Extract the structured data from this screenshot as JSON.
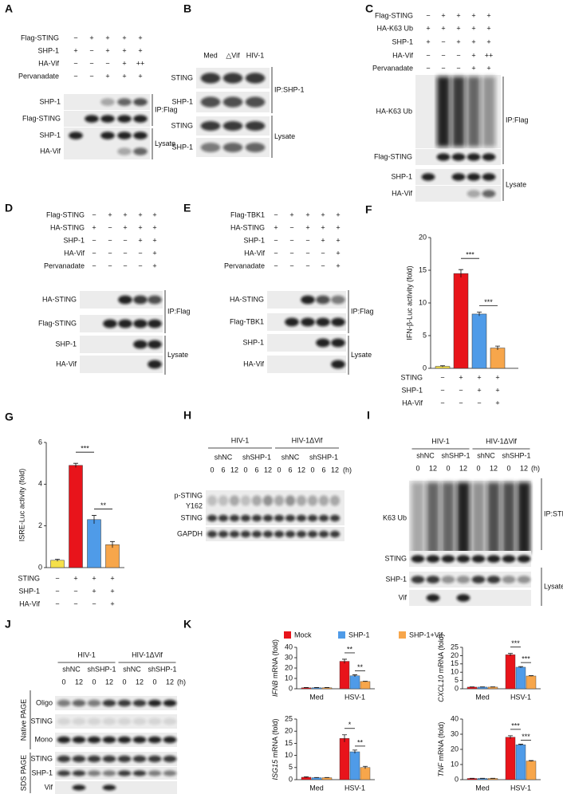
{
  "panels": [
    {
      "label": "A",
      "conditions": [
        {
          "name": "Flag-STING",
          "signs": [
            "−",
            "+",
            "+",
            "+",
            "+"
          ]
        },
        {
          "name": "SHP-1",
          "signs": [
            "+",
            "−",
            "+",
            "+",
            "+"
          ]
        },
        {
          "name": "HA-Vif",
          "signs": [
            "−",
            "−",
            "−",
            "+",
            "++"
          ]
        },
        {
          "name": "Pervanadate",
          "signs": [
            "−",
            "−",
            "+",
            "+",
            "+"
          ]
        }
      ],
      "bands": [
        "SHP-1",
        "Flag-STING",
        "SHP-1",
        "HA-Vif"
      ],
      "groups": [
        "IP:Flag",
        "Lysate"
      ]
    },
    {
      "label": "B",
      "columns": [
        "Med",
        "△Vif",
        "HIV-1"
      ],
      "bands": [
        "STING",
        "SHP-1",
        "STING",
        "SHP-1"
      ],
      "groups": [
        "IP:SHP-1",
        "Lysate"
      ]
    },
    {
      "label": "C",
      "conditions": [
        {
          "name": "Flag-STING",
          "signs": [
            "−",
            "+",
            "+",
            "+",
            "+"
          ]
        },
        {
          "name": "HA-K63 Ub",
          "signs": [
            "+",
            "+",
            "+",
            "+",
            "+"
          ]
        },
        {
          "name": "SHP-1",
          "signs": [
            "+",
            "−",
            "+",
            "+",
            "+"
          ]
        },
        {
          "name": "HA-Vif",
          "signs": [
            "−",
            "−",
            "−",
            "+",
            "++"
          ]
        },
        {
          "name": "Pervanadate",
          "signs": [
            "−",
            "−",
            "−",
            "+",
            "+"
          ]
        }
      ],
      "bands": [
        "HA-K63 Ub",
        "Flag-STING",
        "SHP-1",
        "HA-Vif"
      ],
      "groups": [
        "IP:Flag",
        "Lysate"
      ]
    },
    {
      "label": "D",
      "conditions": [
        {
          "name": "Flag-STING",
          "signs": [
            "−",
            "+",
            "+",
            "+",
            "+"
          ]
        },
        {
          "name": "HA-STING",
          "signs": [
            "+",
            "−",
            "+",
            "+",
            "+"
          ]
        },
        {
          "name": "SHP-1",
          "signs": [
            "−",
            "−",
            "−",
            "+",
            "+"
          ]
        },
        {
          "name": "HA-Vif",
          "signs": [
            "−",
            "−",
            "−",
            "−",
            "+"
          ]
        },
        {
          "name": "Pervanadate",
          "signs": [
            "−",
            "−",
            "−",
            "−",
            "+"
          ]
        }
      ],
      "bands": [
        "HA-STING",
        "Flag-STING",
        "SHP-1",
        "HA-Vif"
      ],
      "groups": [
        "IP:Flag",
        "Lysate"
      ]
    },
    {
      "label": "E",
      "conditions": [
        {
          "name": "Flag-TBK1",
          "signs": [
            "−",
            "+",
            "+",
            "+",
            "+"
          ]
        },
        {
          "name": "HA-STING",
          "signs": [
            "+",
            "−",
            "+",
            "+",
            "+"
          ]
        },
        {
          "name": "SHP-1",
          "signs": [
            "−",
            "−",
            "−",
            "+",
            "+"
          ]
        },
        {
          "name": "HA-Vif",
          "signs": [
            "−",
            "−",
            "−",
            "−",
            "+"
          ]
        },
        {
          "name": "Pervanadate",
          "signs": [
            "−",
            "−",
            "−",
            "−",
            "+"
          ]
        }
      ],
      "bands": [
        "HA-STING",
        "Flag-TBK1",
        "SHP-1",
        "HA-Vif"
      ],
      "groups": [
        "IP:Flag",
        "Lysate"
      ]
    },
    {
      "label": "F",
      "type": "bar",
      "ylabel": "IFN-β-Luc activity (fold)",
      "ylim": [
        0,
        20
      ],
      "yticks": [
        0,
        5,
        10,
        15,
        20
      ],
      "values": [
        0.3,
        14.5,
        8.3,
        3.1
      ],
      "errors": [
        0.1,
        0.6,
        0.3,
        0.3
      ],
      "colors": [
        "#f5e04a",
        "#e8141b",
        "#4f9be8",
        "#f7a64b"
      ],
      "conditions": [
        {
          "name": "STING",
          "signs": [
            "−",
            "+",
            "+",
            "+"
          ]
        },
        {
          "name": "SHP-1",
          "signs": [
            "−",
            "−",
            "+",
            "+"
          ]
        },
        {
          "name": "HA-Vif",
          "signs": [
            "−",
            "−",
            "−",
            "+"
          ]
        }
      ],
      "significance": [
        "***",
        "***"
      ]
    },
    {
      "label": "G",
      "type": "bar",
      "ylabel": "ISRE-Luc activity (fold)",
      "ylim": [
        0,
        6
      ],
      "yticks": [
        0,
        2,
        4,
        6
      ],
      "values": [
        0.35,
        4.9,
        2.3,
        1.1
      ],
      "errors": [
        0.05,
        0.1,
        0.2,
        0.15
      ],
      "colors": [
        "#f5e04a",
        "#e8141b",
        "#4f9be8",
        "#f7a64b"
      ],
      "conditions": [
        {
          "name": "STING",
          "signs": [
            "−",
            "+",
            "+",
            "+"
          ]
        },
        {
          "name": "SHP-1",
          "signs": [
            "−",
            "−",
            "+",
            "+"
          ]
        },
        {
          "name": "HA-Vif",
          "signs": [
            "−",
            "−",
            "−",
            "+"
          ]
        }
      ],
      "significance": [
        "***",
        "**"
      ]
    },
    {
      "label": "H",
      "headers": {
        "groups": [
          "HIV-1",
          "HIV-1ΔVif"
        ],
        "sub": [
          "shNC",
          "shSHP-1",
          "shNC",
          "shSHP-1"
        ],
        "times": [
          0,
          6,
          12,
          0,
          6,
          12,
          0,
          6,
          12,
          0,
          6,
          12
        ],
        "unit": "(h)"
      },
      "bands": [
        [
          "p-STING",
          "Y162"
        ],
        "STING",
        "GAPDH"
      ]
    },
    {
      "label": "I",
      "headers": {
        "groups": [
          "HIV-1",
          "HIV-1ΔVif"
        ],
        "sub": [
          "shNC",
          "shSHP-1",
          "shNC",
          "shSHP-1"
        ],
        "times": [
          0,
          12,
          0,
          12,
          0,
          12,
          0,
          12
        ],
        "unit": "(h)"
      },
      "bands": [
        "K63 Ub",
        "STING",
        "SHP-1",
        "Vif"
      ],
      "groups": [
        "IP:STING",
        "Lysate"
      ]
    },
    {
      "label": "J",
      "headers": {
        "groups": [
          "HIV-1",
          "HIV-1ΔVif"
        ],
        "sub": [
          "shNC",
          "shSHP-1",
          "shNC",
          "shSHP-1"
        ],
        "times": [
          0,
          12,
          0,
          12,
          0,
          12,
          0,
          12
        ],
        "unit": "(h)"
      },
      "bands": [
        "Oligo",
        "STING",
        "Mono",
        "STING",
        "SHP-1",
        "Vif"
      ],
      "side_groups": [
        "Native PAGE",
        "SDS PAGE"
      ]
    },
    {
      "label": "K",
      "type": "grouped-bar",
      "legend": [
        {
          "name": "Mock",
          "color": "#e8141b"
        },
        {
          "name": "SHP-1",
          "color": "#4f9be8"
        },
        {
          "name": "SHP-1+Vif",
          "color": "#f7a64b"
        }
      ],
      "charts": [
        {
          "gene": "IFNB",
          "ylabel": "mRNA (fold)",
          "ylim": [
            0,
            40
          ],
          "yticks": [
            0,
            10,
            20,
            30,
            40
          ],
          "categories": [
            "Med",
            "HSV-1"
          ],
          "values": [
            [
              1,
              1,
              1
            ],
            [
              26.5,
              12.5,
              7
            ]
          ],
          "errors": [
            [
              0.2,
              0.2,
              0.2
            ],
            [
              2,
              1,
              0.3
            ]
          ],
          "significance": [
            "**",
            "**"
          ]
        },
        {
          "gene": "CXCL10",
          "ylabel": "mRNA (fold)",
          "ylim": [
            0,
            25
          ],
          "yticks": [
            0,
            5,
            10,
            15,
            20,
            25
          ],
          "categories": [
            "Med",
            "HSV-1"
          ],
          "values": [
            [
              1,
              1,
              1
            ],
            [
              20.5,
              13,
              7.7
            ]
          ],
          "errors": [
            [
              0.1,
              0.1,
              0.1
            ],
            [
              0.8,
              0.4,
              0.2
            ]
          ],
          "significance": [
            "***",
            "***"
          ]
        },
        {
          "gene": "ISG15",
          "ylabel": "mRNA (fold)",
          "ylim": [
            0,
            25
          ],
          "yticks": [
            0,
            5,
            10,
            15,
            20,
            25
          ],
          "categories": [
            "Med",
            "HSV-1"
          ],
          "values": [
            [
              1,
              0.8,
              0.8
            ],
            [
              17,
              11.5,
              5
            ]
          ],
          "errors": [
            [
              0.2,
              0.1,
              0.1
            ],
            [
              1.5,
              0.7,
              0.5
            ]
          ],
          "significance": [
            "*",
            "**"
          ]
        },
        {
          "gene": "TNF",
          "ylabel": "mRNA (fold)",
          "ylim": [
            0,
            40
          ],
          "yticks": [
            0,
            10,
            20,
            30,
            40
          ],
          "categories": [
            "Med",
            "HSV-1"
          ],
          "values": [
            [
              0.8,
              0.8,
              0.8
            ],
            [
              28,
              23,
              12.3
            ]
          ],
          "errors": [
            [
              0.1,
              0.1,
              0.1
            ],
            [
              1,
              0.4,
              0.3
            ]
          ],
          "significance": [
            "***",
            "***"
          ]
        }
      ]
    }
  ]
}
